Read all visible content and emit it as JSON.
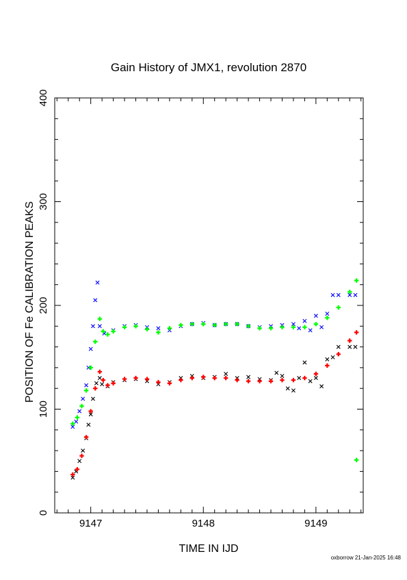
{
  "chart_data": {
    "type": "scatter",
    "title": "Gain History of JMX1, revolution 2870",
    "xlabel": "TIME IN IJD",
    "ylabel": "POSITION OF Fe CALIBRATION PEAKS",
    "xlim": [
      9146.68,
      9149.42
    ],
    "ylim": [
      0,
      400
    ],
    "xticks": [
      9147,
      9148,
      9149
    ],
    "yticks": [
      0,
      100,
      200,
      300,
      400
    ],
    "grid": false,
    "legend": "none",
    "colors": {
      "upper_measured": "#0000ff",
      "lower_measured": "#000000",
      "upper_fit": "#00ff00",
      "lower_fit": "#ff0000"
    },
    "series": [
      {
        "marker": "x",
        "color": "#0000ff",
        "points": [
          [
            9146.84,
            83
          ],
          [
            9146.87,
            88
          ],
          [
            9146.9,
            98
          ],
          [
            9146.93,
            110
          ],
          [
            9146.96,
            123
          ],
          [
            9146.98,
            140
          ],
          [
            9147.0,
            158
          ],
          [
            9147.02,
            180
          ],
          [
            9147.04,
            205
          ],
          [
            9147.06,
            222
          ],
          [
            9147.08,
            180
          ],
          [
            9147.12,
            173
          ],
          [
            9147.2,
            176
          ],
          [
            9147.3,
            180
          ],
          [
            9147.4,
            181
          ],
          [
            9147.5,
            179
          ],
          [
            9147.6,
            178
          ],
          [
            9147.7,
            176
          ],
          [
            9147.8,
            180
          ],
          [
            9147.9,
            182
          ],
          [
            9148.0,
            183
          ],
          [
            9148.1,
            181
          ],
          [
            9148.2,
            182
          ],
          [
            9148.3,
            182
          ],
          [
            9148.4,
            180
          ],
          [
            9148.5,
            179
          ],
          [
            9148.6,
            180
          ],
          [
            9148.7,
            181
          ],
          [
            9148.8,
            182
          ],
          [
            9148.85,
            178
          ],
          [
            9148.9,
            185
          ],
          [
            9148.95,
            176
          ],
          [
            9149.0,
            190
          ],
          [
            9149.05,
            179
          ],
          [
            9149.1,
            192
          ],
          [
            9149.15,
            210
          ],
          [
            9149.2,
            210
          ],
          [
            9149.3,
            210
          ],
          [
            9149.35,
            210
          ]
        ]
      },
      {
        "marker": "x",
        "color": "#000000",
        "points": [
          [
            9146.84,
            34
          ],
          [
            9146.87,
            40
          ],
          [
            9146.9,
            50
          ],
          [
            9146.93,
            60
          ],
          [
            9146.96,
            72
          ],
          [
            9146.98,
            85
          ],
          [
            9147.0,
            95
          ],
          [
            9147.02,
            110
          ],
          [
            9147.05,
            125
          ],
          [
            9147.08,
            130
          ],
          [
            9147.1,
            124
          ],
          [
            9147.15,
            122
          ],
          [
            9147.2,
            126
          ],
          [
            9147.3,
            128
          ],
          [
            9147.4,
            129
          ],
          [
            9147.5,
            127
          ],
          [
            9147.6,
            124
          ],
          [
            9147.7,
            126
          ],
          [
            9147.8,
            130
          ],
          [
            9147.9,
            132
          ],
          [
            9148.0,
            130
          ],
          [
            9148.1,
            131
          ],
          [
            9148.2,
            134
          ],
          [
            9148.3,
            130
          ],
          [
            9148.4,
            131
          ],
          [
            9148.5,
            129
          ],
          [
            9148.6,
            128
          ],
          [
            9148.65,
            135
          ],
          [
            9148.7,
            132
          ],
          [
            9148.75,
            120
          ],
          [
            9148.8,
            118
          ],
          [
            9148.85,
            130
          ],
          [
            9148.9,
            145
          ],
          [
            9148.95,
            127
          ],
          [
            9149.0,
            130
          ],
          [
            9149.05,
            122
          ],
          [
            9149.1,
            148
          ],
          [
            9149.15,
            150
          ],
          [
            9149.2,
            160
          ],
          [
            9149.3,
            160
          ],
          [
            9149.35,
            160
          ]
        ]
      },
      {
        "marker": "+",
        "color": "#00ff00",
        "points": [
          [
            9146.84,
            86
          ],
          [
            9146.88,
            92
          ],
          [
            9146.92,
            103
          ],
          [
            9146.96,
            118
          ],
          [
            9147.0,
            140
          ],
          [
            9147.04,
            165
          ],
          [
            9147.08,
            187
          ],
          [
            9147.11,
            175
          ],
          [
            9147.15,
            172
          ],
          [
            9147.2,
            175
          ],
          [
            9147.3,
            179
          ],
          [
            9147.4,
            180
          ],
          [
            9147.5,
            177
          ],
          [
            9147.6,
            174
          ],
          [
            9147.7,
            178
          ],
          [
            9147.8,
            181
          ],
          [
            9147.9,
            182
          ],
          [
            9148.0,
            182
          ],
          [
            9148.1,
            181
          ],
          [
            9148.2,
            182
          ],
          [
            9148.3,
            182
          ],
          [
            9148.4,
            180
          ],
          [
            9148.5,
            178
          ],
          [
            9148.6,
            178
          ],
          [
            9148.7,
            179
          ],
          [
            9148.8,
            179
          ],
          [
            9148.9,
            179
          ],
          [
            9149.0,
            182
          ],
          [
            9149.1,
            188
          ],
          [
            9149.2,
            198
          ],
          [
            9149.3,
            213
          ],
          [
            9149.36,
            224
          ],
          [
            9149.36,
            51
          ]
        ]
      },
      {
        "marker": "+",
        "color": "#ff0000",
        "points": [
          [
            9146.84,
            37
          ],
          [
            9146.88,
            42
          ],
          [
            9146.92,
            55
          ],
          [
            9146.96,
            73
          ],
          [
            9147.0,
            98
          ],
          [
            9147.04,
            120
          ],
          [
            9147.08,
            136
          ],
          [
            9147.11,
            128
          ],
          [
            9147.15,
            123
          ],
          [
            9147.2,
            125
          ],
          [
            9147.3,
            129
          ],
          [
            9147.4,
            130
          ],
          [
            9147.5,
            129
          ],
          [
            9147.6,
            126
          ],
          [
            9147.7,
            125
          ],
          [
            9147.8,
            128
          ],
          [
            9147.9,
            130
          ],
          [
            9148.0,
            131
          ],
          [
            9148.1,
            130
          ],
          [
            9148.2,
            130
          ],
          [
            9148.3,
            128
          ],
          [
            9148.4,
            127
          ],
          [
            9148.5,
            127
          ],
          [
            9148.6,
            127
          ],
          [
            9148.7,
            128
          ],
          [
            9148.8,
            128
          ],
          [
            9148.9,
            130
          ],
          [
            9149.0,
            134
          ],
          [
            9149.1,
            142
          ],
          [
            9149.2,
            153
          ],
          [
            9149.3,
            166
          ],
          [
            9149.36,
            174
          ]
        ]
      }
    ]
  },
  "footer": "oxborrow 21-Jan-2025 16:48"
}
